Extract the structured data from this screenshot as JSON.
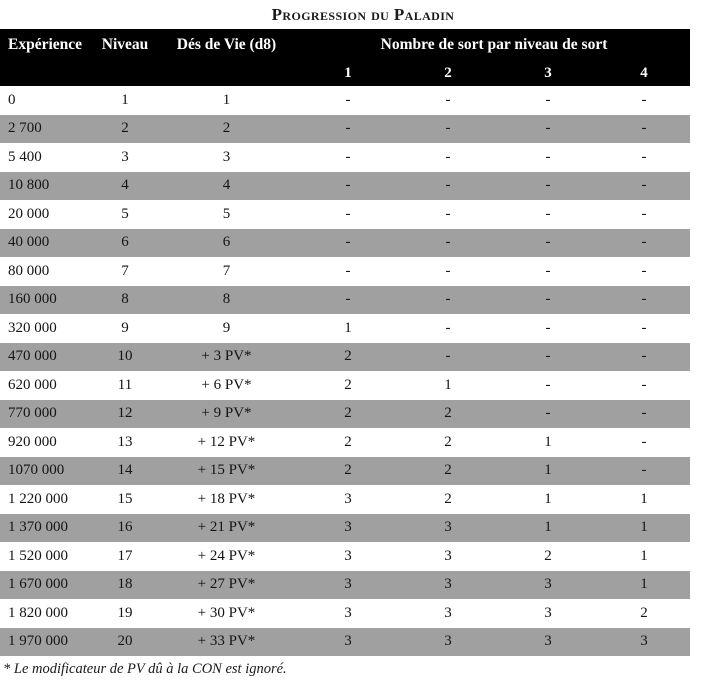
{
  "title": "Progression du Paladin",
  "header": {
    "experience": "Expérience",
    "niveau": "Niveau",
    "des_de_vie": "Dés de Vie (d8)",
    "spells_group": "Nombre de sort par niveau de sort",
    "spell_levels": [
      "1",
      "2",
      "3",
      "4"
    ]
  },
  "rows": [
    [
      "0",
      "1",
      "1",
      "-",
      "-",
      "-",
      "-"
    ],
    [
      "2 700",
      "2",
      "2",
      "-",
      "-",
      "-",
      "-"
    ],
    [
      "5 400",
      "3",
      "3",
      "-",
      "-",
      "-",
      "-"
    ],
    [
      "10 800",
      "4",
      "4",
      "-",
      "-",
      "-",
      "-"
    ],
    [
      "20 000",
      "5",
      "5",
      "-",
      "-",
      "-",
      "-"
    ],
    [
      "40 000",
      "6",
      "6",
      "-",
      "-",
      "-",
      "-"
    ],
    [
      "80 000",
      "7",
      "7",
      "-",
      "-",
      "-",
      "-"
    ],
    [
      "160 000",
      "8",
      "8",
      "-",
      "-",
      "-",
      "-"
    ],
    [
      "320 000",
      "9",
      "9",
      "1",
      "-",
      "-",
      "-"
    ],
    [
      "470 000",
      "10",
      "+ 3 PV*",
      "2",
      "-",
      "-",
      "-"
    ],
    [
      "620 000",
      "11",
      "+ 6 PV*",
      "2",
      "1",
      "-",
      "-"
    ],
    [
      "770 000",
      "12",
      "+ 9 PV*",
      "2",
      "2",
      "-",
      "-"
    ],
    [
      "920 000",
      "13",
      "+ 12 PV*",
      "2",
      "2",
      "1",
      "-"
    ],
    [
      "1070 000",
      "14",
      "+ 15 PV*",
      "2",
      "2",
      "1",
      "-"
    ],
    [
      "1 220 000",
      "15",
      "+ 18 PV*",
      "3",
      "2",
      "1",
      "1"
    ],
    [
      "1 370 000",
      "16",
      "+ 21 PV*",
      "3",
      "3",
      "1",
      "1"
    ],
    [
      "1 520 000",
      "17",
      "+ 24 PV*",
      "3",
      "3",
      "2",
      "1"
    ],
    [
      "1 670 000",
      "18",
      "+ 27 PV*",
      "3",
      "3",
      "3",
      "1"
    ],
    [
      "1 820 000",
      "19",
      "+ 30 PV*",
      "3",
      "3",
      "3",
      "2"
    ],
    [
      "1 970 000",
      "20",
      "+ 33 PV*",
      "3",
      "3",
      "3",
      "3"
    ]
  ],
  "footnote": "* Le modificateur de PV dû à la CON est ignoré.",
  "colors": {
    "header_bg": "#000000",
    "header_text": "#ffffff",
    "row_alt_bg": "#a0a0a0",
    "text": "#141414"
  }
}
